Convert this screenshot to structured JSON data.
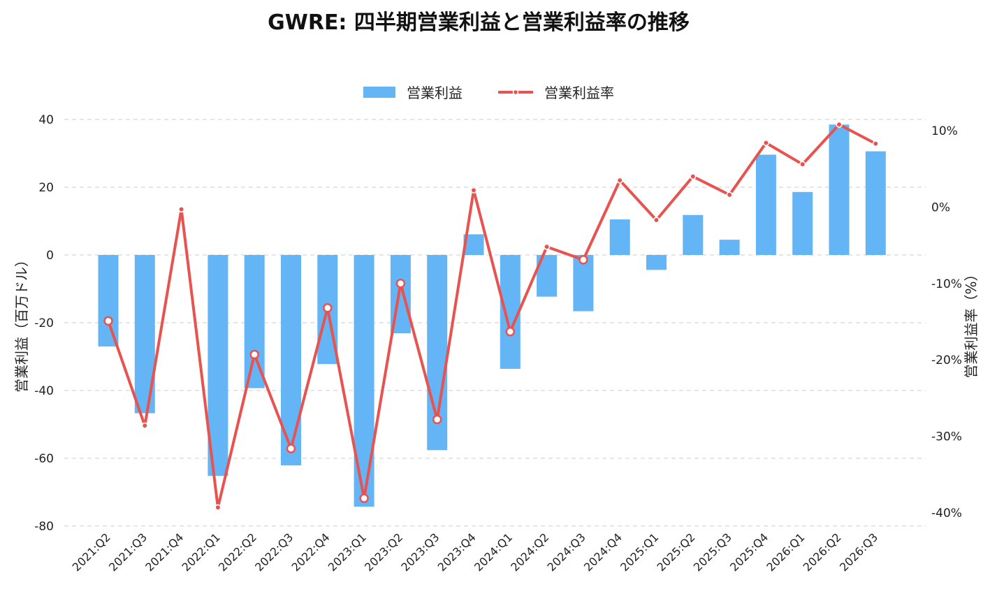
{
  "chart_data": {
    "type": "bar",
    "title": "GWRE: 四半期営業利益と営業利益率の推移",
    "ylabel": "営業利益（百万ドル）",
    "y2label": "営業利益率（%）",
    "legend_placement": "top-center",
    "grid": true,
    "ylim": [
      -80,
      40
    ],
    "y2lim": [
      -0.4,
      0.1
    ],
    "yticks": [
      -80,
      -60,
      -40,
      -20,
      0,
      20,
      40
    ],
    "y2ticks": [
      -0.4,
      -0.3,
      -0.2,
      -0.1,
      0.0,
      0.1
    ],
    "y2ticklabels": [
      "-40%",
      "-30%",
      "-20%",
      "-10%",
      "0%",
      "10%"
    ],
    "categories": [
      "2021:Q2",
      "2021:Q3",
      "2021:Q4",
      "2022:Q1",
      "2022:Q2",
      "2022:Q3",
      "2022:Q4",
      "2023:Q1",
      "2023:Q2",
      "2023:Q3",
      "2023:Q4",
      "2024:Q1",
      "2024:Q2",
      "2024:Q3",
      "2024:Q4",
      "2025:Q1",
      "2025:Q2",
      "2025:Q3",
      "2025:Q4",
      "2026:Q1",
      "2026:Q2",
      "2026:Q3"
    ],
    "series": [
      {
        "name": "営業利益",
        "type": "bar",
        "axis": "left",
        "color": "#64b5f6",
        "values": [
          -27.0,
          -46.7,
          null,
          -65.2,
          -39.3,
          -62.1,
          -32.2,
          -74.3,
          -23.1,
          -57.6,
          6.1,
          -33.6,
          -12.3,
          -16.6,
          10.5,
          -4.4,
          11.8,
          4.5,
          29.6,
          18.6,
          38.5,
          30.6
        ]
      },
      {
        "name": "営業利益率",
        "type": "line",
        "axis": "right",
        "color": "#e85350",
        "values": [
          -0.149,
          -0.286,
          -0.003,
          -0.393,
          -0.193,
          -0.316,
          -0.132,
          -0.381,
          -0.1,
          -0.278,
          0.022,
          -0.163,
          -0.052,
          -0.069,
          0.035,
          -0.017,
          0.04,
          0.016,
          0.084,
          0.056,
          0.108,
          0.083
        ]
      }
    ]
  }
}
